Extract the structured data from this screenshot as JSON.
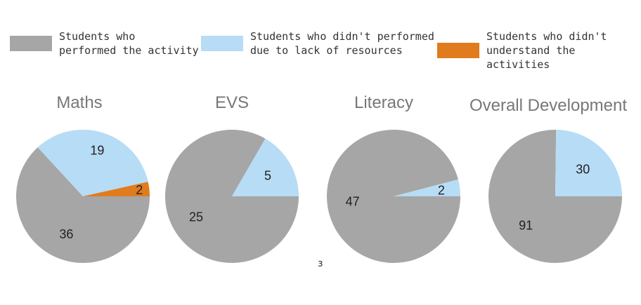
{
  "chart_data": [
    {
      "type": "pie",
      "title": "Maths",
      "slices": [
        {
          "series": "Students who performed the activity",
          "value": 36
        },
        {
          "series": "Students who didn't performed due to lack of resources",
          "value": 19
        },
        {
          "series": "Students who didn't understand the activities",
          "value": 2
        }
      ]
    },
    {
      "type": "pie",
      "title": "EVS",
      "slices": [
        {
          "series": "Students who performed the activity",
          "value": 25
        },
        {
          "series": "Students who didn't performed due to lack of resources",
          "value": 5
        }
      ]
    },
    {
      "type": "pie",
      "title": "Literacy",
      "slices": [
        {
          "series": "Students who performed the activity",
          "value": 47
        },
        {
          "series": "Students who didn't performed due to lack of resources",
          "value": 2
        }
      ]
    },
    {
      "type": "pie",
      "title": "Overall Development",
      "slices": [
        {
          "series": "Students who performed the activity",
          "value": 91
        },
        {
          "series": "Students who didn't performed due to lack of resources",
          "value": 30
        }
      ]
    }
  ],
  "legend": {
    "placement": "top",
    "items": [
      {
        "label": "Students who\nperformed the activity",
        "color": "#a6a6a6"
      },
      {
        "label": "Students who didn't performed\ndue to lack of resources",
        "color": "#b7dcf5"
      },
      {
        "label": "Students who didn't\nunderstand the activities",
        "color": "#e07c1e"
      }
    ]
  },
  "stray_mark": "з"
}
